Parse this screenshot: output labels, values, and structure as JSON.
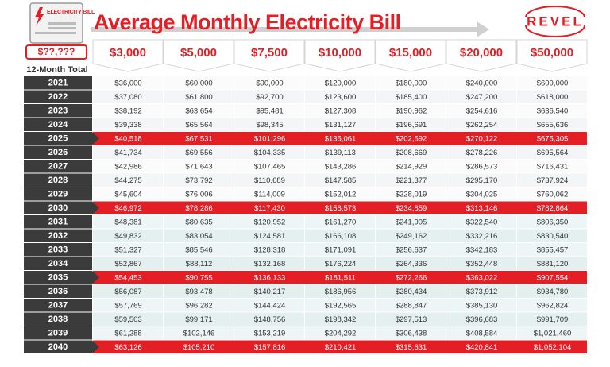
{
  "header": {
    "title": "Average Monthly Electricity Bill",
    "logo": "REVEL",
    "icon_label": "ELECTRICITY BILL",
    "icon_amount": "$??,???",
    "row_header": "12-Month Total"
  },
  "table": {
    "columns": [
      "$3,000",
      "$5,000",
      "$7,500",
      "$10,000",
      "$15,000",
      "$20,000",
      "$50,000"
    ],
    "rows": [
      {
        "year": "2021",
        "values": [
          "$36,000",
          "$60,000",
          "$90,000",
          "$120,000",
          "$180,000",
          "$240,000",
          "$600,000"
        ]
      },
      {
        "year": "2022",
        "values": [
          "$37,080",
          "$61,800",
          "$92,700",
          "$123,600",
          "$185,400",
          "$247,200",
          "$618,000"
        ]
      },
      {
        "year": "2023",
        "values": [
          "$38,192",
          "$63,654",
          "$95,481",
          "$127,308",
          "$190,962",
          "$254,616",
          "$636,540"
        ]
      },
      {
        "year": "2024",
        "values": [
          "$39,338",
          "$65,564",
          "$98,345",
          "$131,127",
          "$196,691",
          "$262,254",
          "$655,636"
        ]
      },
      {
        "year": "2025",
        "highlight": true,
        "values": [
          "$40,518",
          "$67,531",
          "$101,296",
          "$135,061",
          "$202,592",
          "$270,122",
          "$675,305"
        ]
      },
      {
        "year": "2026",
        "values": [
          "$41,734",
          "$69,556",
          "$104,335",
          "$139,113",
          "$208,669",
          "$278,226",
          "$695,564"
        ]
      },
      {
        "year": "2027",
        "values": [
          "$42,986",
          "$71,643",
          "$107,465",
          "$143,286",
          "$214,929",
          "$286,573",
          "$716,431"
        ]
      },
      {
        "year": "2028",
        "values": [
          "$44,275",
          "$73,792",
          "$110,689",
          "$147,585",
          "$221,377",
          "$295,170",
          "$737,924"
        ]
      },
      {
        "year": "2029",
        "values": [
          "$45,604",
          "$76,006",
          "$114,009",
          "$152,012",
          "$228,019",
          "$304,025",
          "$760,062"
        ]
      },
      {
        "year": "2030",
        "highlight": true,
        "values": [
          "$46,972",
          "$78,286",
          "$117,430",
          "$156,573",
          "$234,859",
          "$313,146",
          "$782,864"
        ]
      },
      {
        "year": "2031",
        "values": [
          "$48,381",
          "$80,635",
          "$120,952",
          "$161,270",
          "$241,905",
          "$322,540",
          "$806,350"
        ]
      },
      {
        "year": "2032",
        "values": [
          "$49,832",
          "$83,054",
          "$124,581",
          "$166,108",
          "$249,162",
          "$332,216",
          "$830,540"
        ]
      },
      {
        "year": "2033",
        "values": [
          "$51,327",
          "$85,546",
          "$128,318",
          "$171,091",
          "$256,637",
          "$342,183",
          "$855,457"
        ]
      },
      {
        "year": "2034",
        "values": [
          "$52,867",
          "$88,112",
          "$132,168",
          "$176,224",
          "$264,336",
          "$352,448",
          "$881,120"
        ]
      },
      {
        "year": "2035",
        "highlight": true,
        "values": [
          "$54,453",
          "$90,755",
          "$136,133",
          "$181,511",
          "$272,266",
          "$363,022",
          "$907,554"
        ]
      },
      {
        "year": "2036",
        "values": [
          "$56,087",
          "$93,478",
          "$140,217",
          "$186,956",
          "$280,434",
          "$373,912",
          "$934,780"
        ]
      },
      {
        "year": "2037",
        "values": [
          "$57,769",
          "$96,282",
          "$144,424",
          "$192,565",
          "$288,847",
          "$385,130",
          "$962,824"
        ]
      },
      {
        "year": "2038",
        "values": [
          "$59,503",
          "$99,171",
          "$148,756",
          "$198,342",
          "$297,513",
          "$396,683",
          "$991,709"
        ]
      },
      {
        "year": "2039",
        "values": [
          "$61,288",
          "$102,146",
          "$153,219",
          "$204,292",
          "$306,438",
          "$408,584",
          "$1,021,460"
        ]
      },
      {
        "year": "2040",
        "highlight": true,
        "values": [
          "$63,126",
          "$105,210",
          "$157,816",
          "$210,421",
          "$315,631",
          "$420,841",
          "$1,052,104"
        ]
      }
    ]
  }
}
